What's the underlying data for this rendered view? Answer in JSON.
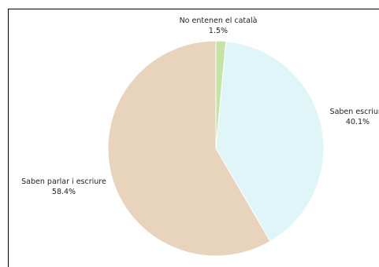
{
  "chart_data": {
    "type": "pie",
    "title": "",
    "slices": [
      {
        "label": "No entenen el català",
        "value": 1.5,
        "percent_text": "1.5%",
        "color": "#c5e3a5"
      },
      {
        "label": "Saben escriure",
        "value": 40.1,
        "percent_text": "40.1%",
        "color": "#e0f5f8"
      },
      {
        "label": "Saben parlar i escriure",
        "value": 58.4,
        "percent_text": "58.4%",
        "color": "#e8d3bd"
      }
    ],
    "start_angle_deg": 0,
    "direction": "clockwise",
    "legend": "none"
  }
}
